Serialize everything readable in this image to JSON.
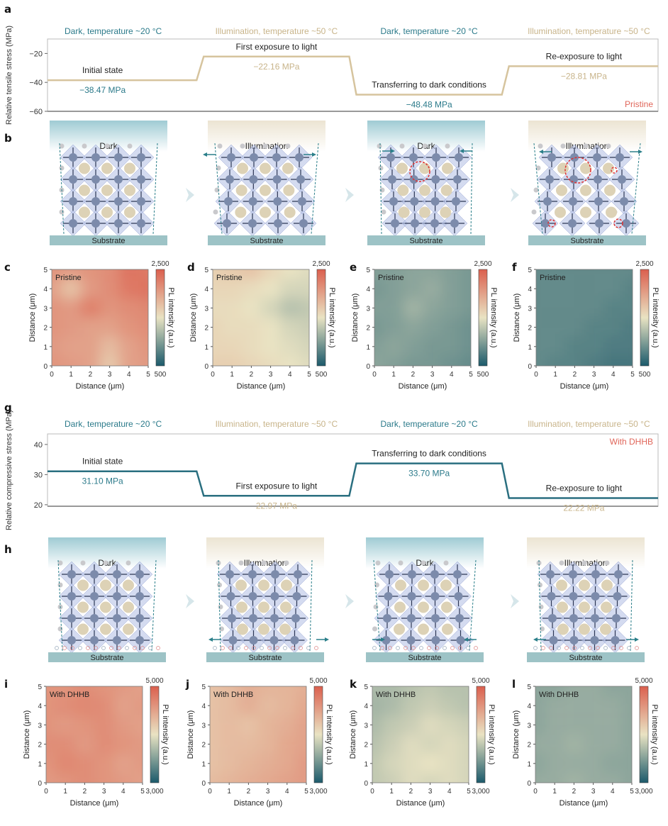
{
  "panel_labels": [
    "a",
    "b",
    "c",
    "d",
    "e",
    "f",
    "g",
    "h",
    "i",
    "j",
    "k",
    "l"
  ],
  "colors": {
    "dark_phase": "#2b7a8a",
    "light_phase": "#c8b48a",
    "line_a": "#d6c49e",
    "line_g": "#2a6f80",
    "sample_label": "#e0665a",
    "cmap": [
      "#1b5a6b",
      "#e9e3c3",
      "#db5f4e"
    ]
  },
  "chart_data": [
    {
      "id": "a",
      "type": "line",
      "ylabel": "Relative tensile stress (MPa)",
      "ylim": [
        -60,
        -10
      ],
      "yticks": [
        -20,
        -40,
        -60
      ],
      "tag": "Pristine",
      "phases": [
        "Dark, temperature ~20 °C",
        "Illumination, temperature ~50 °C",
        "Dark, temperature ~20 °C",
        "Illumination, temperature ~50 °C"
      ],
      "steps": [
        {
          "label": "Initial state",
          "value": -38.47,
          "value_label": "−38.47 MPa"
        },
        {
          "label": "First exposure to light",
          "value": -22.16,
          "value_label": "−22.16 MPa"
        },
        {
          "label": "Transferring to dark conditions",
          "value": -48.48,
          "value_label": "−48.48 MPa"
        },
        {
          "label": "Re-exposure to light",
          "value": -28.81,
          "value_label": "−28.81 MPa"
        }
      ]
    },
    {
      "id": "g",
      "type": "line",
      "ylabel": "Relative compressive stress (MPa)",
      "ylim": [
        19.5,
        43.5
      ],
      "yticks": [
        40,
        30,
        20
      ],
      "tag": "With DHHB",
      "phases": [
        "Dark, temperature ~20 °C",
        "Illumination, temperature ~50 °C",
        "Dark, temperature ~20 °C",
        "Illumination, temperature ~50 °C"
      ],
      "steps": [
        {
          "label": "Initial state",
          "value": 31.1,
          "value_label": "31.10 MPa"
        },
        {
          "label": "First exposure to light",
          "value": 22.97,
          "value_label": "22.97 MPa"
        },
        {
          "label": "Transferring to dark conditions",
          "value": 33.7,
          "value_label": "33.70 MPa"
        },
        {
          "label": "Re-exposure to light",
          "value": 22.22,
          "value_label": "22.22 MPa"
        }
      ]
    },
    {
      "id": "c",
      "type": "heatmap",
      "tag": "Pristine",
      "xlabel": "Distance (μm)",
      "ylabel": "Distance (μm)",
      "cbar_label": "PL intensity (a.u.)",
      "clim": [
        500,
        2500
      ],
      "cbar_ticks": [
        "2,500",
        "500"
      ],
      "ticks": [
        "0",
        "1",
        "2",
        "3",
        "4",
        "5"
      ],
      "z": [
        [
          2100,
          2050,
          2000,
          1700,
          2000,
          2050
        ],
        [
          2050,
          2000,
          2000,
          1800,
          2000,
          2100
        ],
        [
          2100,
          2050,
          2000,
          2000,
          2100,
          2150
        ],
        [
          2100,
          2050,
          2250,
          2100,
          2150,
          2200
        ],
        [
          2000,
          1750,
          2050,
          2150,
          2300,
          2350
        ],
        [
          2100,
          2050,
          2100,
          2150,
          2350,
          2300
        ]
      ]
    },
    {
      "id": "d",
      "type": "heatmap",
      "tag": "Pristine",
      "xlabel": "Distance (μm)",
      "ylabel": "Distance (μm)",
      "cbar_label": "PL intensity (a.u.)",
      "clim": [
        500,
        2500
      ],
      "cbar_ticks": [
        "2,500",
        "500"
      ],
      "ticks": [
        "0",
        "1",
        "2",
        "3",
        "4",
        "5"
      ],
      "z": [
        [
          1650,
          1650,
          1600,
          1550,
          1500,
          1450
        ],
        [
          1600,
          1600,
          1550,
          1500,
          1450,
          1400
        ],
        [
          1600,
          1550,
          1550,
          1500,
          1400,
          1350
        ],
        [
          1550,
          1550,
          1500,
          1400,
          1250,
          1300
        ],
        [
          1600,
          1600,
          1550,
          1500,
          1400,
          1400
        ],
        [
          1650,
          1700,
          1750,
          1600,
          1500,
          1450
        ]
      ]
    },
    {
      "id": "e",
      "type": "heatmap",
      "tag": "Pristine",
      "xlabel": "Distance (μm)",
      "ylabel": "Distance (μm)",
      "cbar_label": "PL intensity (a.u.)",
      "clim": [
        500,
        2500
      ],
      "cbar_ticks": [
        "2,500",
        "500"
      ],
      "ticks": [
        "0",
        "1",
        "2",
        "3",
        "4",
        "5"
      ],
      "z": [
        [
          1050,
          1000,
          950,
          950,
          900,
          850
        ],
        [
          1000,
          1050,
          1000,
          950,
          950,
          900
        ],
        [
          950,
          1000,
          1050,
          1000,
          950,
          900
        ],
        [
          1000,
          1000,
          1150,
          1050,
          1000,
          950
        ],
        [
          950,
          1000,
          1050,
          1100,
          1000,
          950
        ],
        [
          1000,
          1000,
          1050,
          1050,
          1000,
          950
        ]
      ]
    },
    {
      "id": "f",
      "type": "heatmap",
      "tag": "Pristine",
      "xlabel": "Distance (μm)",
      "ylabel": "Distance (μm)",
      "cbar_label": "PL intensity (a.u.)",
      "clim": [
        500,
        2500
      ],
      "cbar_ticks": [
        "2,500",
        "500"
      ],
      "ticks": [
        "0",
        "1",
        "2",
        "3",
        "4",
        "5"
      ],
      "z": [
        [
          850,
          800,
          800,
          750,
          700,
          700
        ],
        [
          850,
          850,
          800,
          800,
          750,
          750
        ],
        [
          850,
          850,
          850,
          800,
          800,
          750
        ],
        [
          850,
          850,
          850,
          850,
          800,
          800
        ],
        [
          850,
          850,
          850,
          850,
          850,
          800
        ],
        [
          850,
          850,
          850,
          850,
          850,
          850
        ]
      ]
    },
    {
      "id": "i",
      "type": "heatmap",
      "tag": "With DHHB",
      "xlabel": "Distance (μm)",
      "ylabel": "Distance (μm)",
      "cbar_label": "PL intensity (a.u.)",
      "clim": [
        3000,
        5000
      ],
      "cbar_ticks": [
        "5,000",
        "3,000"
      ],
      "ticks": [
        "0",
        "1",
        "2",
        "3",
        "4",
        "5"
      ],
      "z": [
        [
          4550,
          4600,
          4650,
          4600,
          4550,
          4500
        ],
        [
          4600,
          4700,
          4650,
          4600,
          4500,
          4550
        ],
        [
          4650,
          4650,
          4550,
          4650,
          4600,
          4550
        ],
        [
          4600,
          4550,
          4600,
          4650,
          4550,
          4500
        ],
        [
          4600,
          4650,
          4700,
          4650,
          4500,
          4550
        ],
        [
          4600,
          4600,
          4650,
          4600,
          4550,
          4500
        ]
      ]
    },
    {
      "id": "j",
      "type": "heatmap",
      "tag": "With DHHB",
      "xlabel": "Distance (μm)",
      "ylabel": "Distance (μm)",
      "cbar_label": "PL intensity (a.u.)",
      "clim": [
        3000,
        5000
      ],
      "cbar_ticks": [
        "5,000",
        "3,000"
      ],
      "ticks": [
        "0",
        "1",
        "2",
        "3",
        "4",
        "5"
      ],
      "z": [
        [
          4300,
          4350,
          4400,
          4450,
          4500,
          4550
        ],
        [
          4250,
          4300,
          4350,
          4400,
          4450,
          4550
        ],
        [
          4250,
          4300,
          4300,
          4350,
          4450,
          4500
        ],
        [
          4250,
          4300,
          4250,
          4350,
          4400,
          4500
        ],
        [
          4250,
          4300,
          4400,
          4300,
          4350,
          4450
        ],
        [
          4250,
          4300,
          4400,
          4350,
          4350,
          4400
        ]
      ]
    },
    {
      "id": "k",
      "type": "heatmap",
      "tag": "With DHHB",
      "xlabel": "Distance (μm)",
      "ylabel": "Distance (μm)",
      "cbar_label": "PL intensity (a.u.)",
      "clim": [
        3000,
        5000
      ],
      "cbar_ticks": [
        "5,000",
        "3,000"
      ],
      "ticks": [
        "0",
        "1",
        "2",
        "3",
        "4",
        "5"
      ],
      "z": [
        [
          3800,
          3850,
          3950,
          3900,
          3950,
          3900
        ],
        [
          3800,
          3900,
          3950,
          4000,
          3950,
          3900
        ],
        [
          3750,
          3850,
          3950,
          3900,
          3950,
          3900
        ],
        [
          3700,
          3800,
          3850,
          3950,
          3900,
          3850
        ],
        [
          3650,
          3700,
          3800,
          3850,
          3800,
          3750
        ],
        [
          3700,
          3700,
          3750,
          3800,
          3750,
          3750
        ]
      ]
    },
    {
      "id": "l",
      "type": "heatmap",
      "tag": "With DHHB",
      "xlabel": "Distance (μm)",
      "ylabel": "Distance (μm)",
      "cbar_label": "PL intensity (a.u.)",
      "clim": [
        3000,
        5000
      ],
      "cbar_ticks": [
        "5,000",
        "3,000"
      ],
      "ticks": [
        "0",
        "1",
        "2",
        "3",
        "4",
        "5"
      ],
      "z": [
        [
          3600,
          3600,
          3650,
          3600,
          3600,
          3550
        ],
        [
          3550,
          3600,
          3600,
          3600,
          3550,
          3550
        ],
        [
          3600,
          3600,
          3650,
          3600,
          3600,
          3550
        ],
        [
          3550,
          3600,
          3600,
          3600,
          3600,
          3550
        ],
        [
          3550,
          3600,
          3600,
          3600,
          3600,
          3550
        ],
        [
          3550,
          3550,
          3600,
          3600,
          3550,
          3550
        ]
      ]
    }
  ],
  "schematic_b": {
    "panels": [
      {
        "title": "Dark"
      },
      {
        "title": "Illumination"
      },
      {
        "title": "Dark"
      },
      {
        "title": "Illumination"
      }
    ],
    "substrate": "Substrate"
  },
  "schematic_h": {
    "panels": [
      {
        "title": "Dark"
      },
      {
        "title": "Illumination"
      },
      {
        "title": "Dark"
      },
      {
        "title": "Illumination"
      }
    ],
    "substrate": "Substrate"
  }
}
